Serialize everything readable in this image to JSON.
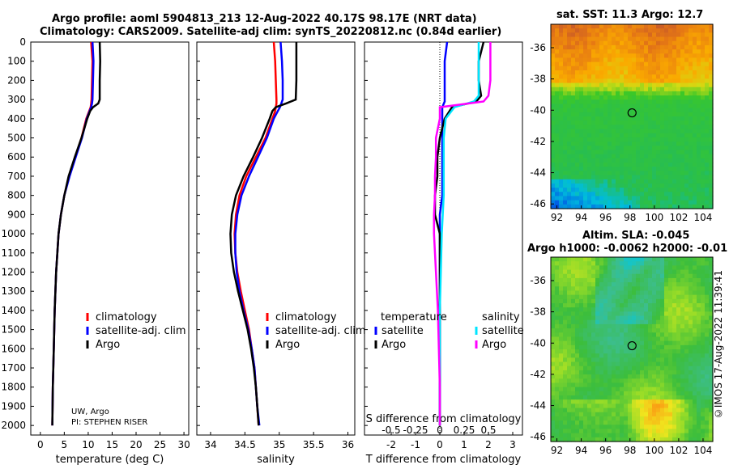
{
  "titles": {
    "line1": "Argo profile: aoml 5904813_213 12-Aug-2022 40.17S 98.17E (NRT data)",
    "line2": "Climatology: CARS2009. Satellite-adj clim: synTS_20220812.nc (0.84d earlier)"
  },
  "colors": {
    "climatology": "#ff0000",
    "satellite": "#0000ff",
    "argo": "#000000",
    "sat_temp": "#00e5ff",
    "sal_diff": "#ff00ff"
  },
  "chart_data": [
    {
      "type": "line",
      "name": "temperature",
      "xlabel": "temperature (deg C)",
      "ylabel": "",
      "xlim": [
        -2,
        31
      ],
      "ylim": [
        2050,
        0
      ],
      "xticks": [
        0,
        5,
        10,
        15,
        20,
        25,
        30
      ],
      "yticks": [
        0,
        100,
        200,
        300,
        400,
        500,
        600,
        700,
        800,
        900,
        1000,
        1100,
        1200,
        1300,
        1400,
        1500,
        1600,
        1700,
        1800,
        1900,
        2000
      ],
      "depth": [
        0,
        100,
        200,
        300,
        320,
        340,
        360,
        400,
        500,
        600,
        700,
        800,
        900,
        1000,
        1200,
        1400,
        1600,
        1800,
        2000
      ],
      "series": [
        {
          "name": "climatology",
          "values": [
            10.6,
            10.9,
            10.8,
            10.7,
            10.6,
            10.5,
            10.2,
            9.6,
            8.6,
            7.3,
            6.0,
            5.0,
            4.3,
            3.8,
            3.3,
            3.0,
            2.8,
            2.6,
            2.5
          ]
        },
        {
          "name": "satellite-adj. clim.",
          "values": [
            10.9,
            11.1,
            11.0,
            10.9,
            10.8,
            10.6,
            10.3,
            9.7,
            8.7,
            7.4,
            6.1,
            5.0,
            4.3,
            3.8,
            3.3,
            3.0,
            2.8,
            2.6,
            2.5
          ]
        },
        {
          "name": "Argo",
          "values": [
            12.4,
            12.5,
            12.4,
            12.4,
            12.1,
            11.0,
            10.4,
            9.8,
            8.6,
            7.2,
            5.9,
            5.0,
            4.3,
            3.8,
            3.3,
            3.0,
            2.8,
            2.6,
            2.5
          ]
        }
      ],
      "legend": [
        "climatology",
        "satellite-adj. clim",
        "Argo"
      ],
      "annotations": [
        "UW, Argo",
        "PI: STEPHEN RISER"
      ]
    },
    {
      "type": "line",
      "name": "salinity",
      "xlabel": "salinity",
      "xlim": [
        33.8,
        36.1
      ],
      "ylim": [
        2050,
        0
      ],
      "xticks": [
        34,
        34.5,
        35,
        35.5,
        36
      ],
      "xticklabels": [
        "34",
        "34.5",
        "35",
        "35.5",
        "36"
      ],
      "depth": [
        0,
        100,
        200,
        300,
        320,
        340,
        360,
        400,
        500,
        600,
        700,
        800,
        900,
        1000,
        1100,
        1200,
        1300,
        1400,
        1500,
        1600,
        1700,
        1800,
        1900,
        2000
      ],
      "series": [
        {
          "name": "climatology",
          "values": [
            34.92,
            34.94,
            34.95,
            34.96,
            34.96,
            34.95,
            34.94,
            34.9,
            34.8,
            34.66,
            34.52,
            34.42,
            34.37,
            34.35,
            34.36,
            34.39,
            34.44,
            34.5,
            34.56,
            34.6,
            34.64,
            34.66,
            34.68,
            34.7
          ]
        },
        {
          "name": "satellite-adj. clim.",
          "values": [
            35.02,
            35.04,
            35.05,
            35.05,
            35.03,
            35.01,
            34.98,
            34.92,
            34.82,
            34.69,
            34.56,
            34.45,
            34.39,
            34.36,
            34.36,
            34.38,
            34.42,
            34.48,
            34.55,
            34.6,
            34.64,
            34.66,
            34.68,
            34.71
          ]
        },
        {
          "name": "Argo",
          "values": [
            35.25,
            35.25,
            35.25,
            35.24,
            35.1,
            34.95,
            34.9,
            34.86,
            34.75,
            34.62,
            34.48,
            34.37,
            34.31,
            34.29,
            34.3,
            34.34,
            34.4,
            34.47,
            34.54,
            34.59,
            34.63,
            34.66,
            34.68,
            34.7
          ]
        }
      ],
      "legend": [
        "climatology",
        "satellite-adj. clim.",
        "Argo"
      ]
    },
    {
      "type": "line",
      "name": "difference",
      "xlabel": "T difference from climatology",
      "xlabel2": "S difference from climatology",
      "xlim": [
        -3.1,
        3.4
      ],
      "ylim": [
        2050,
        0
      ],
      "xticks": [
        -2,
        -1,
        0,
        1,
        2,
        3
      ],
      "xticks2": [
        -0.5,
        -0.25,
        0,
        0.25,
        0.5
      ],
      "xticklabels2": [
        "-0.5",
        "-0.25",
        "0",
        "0.25",
        "0.5"
      ],
      "depth": [
        0,
        100,
        200,
        280,
        310,
        340,
        400,
        500,
        600,
        700,
        800,
        900,
        1000,
        1200,
        1400,
        1600,
        1800,
        2000
      ],
      "series": [
        {
          "name": "temperature satellite",
          "values": [
            0.3,
            0.2,
            0.2,
            0.2,
            0.2,
            0.1,
            0.1,
            0.1,
            0.1,
            0.1,
            0.1,
            0.0,
            0.0,
            0.0,
            0.0,
            0.0,
            0.0,
            0.0
          ]
        },
        {
          "name": "temperature Argo",
          "values": [
            1.8,
            1.6,
            1.6,
            1.7,
            1.5,
            0.5,
            0.2,
            0.0,
            -0.1,
            -0.1,
            -0.2,
            -0.2,
            0.0,
            0.0,
            0.0,
            0.0,
            0.0,
            0.0
          ]
        },
        {
          "name": "salinity satellite",
          "values": [
            0.4,
            0.4,
            0.4,
            0.4,
            0.35,
            0.15,
            0.06,
            0.04,
            0.04,
            0.04,
            0.04,
            0.03,
            0.02,
            0.01,
            0.0,
            0.0,
            0.0,
            0.0
          ]
        },
        {
          "name": "salinity Argo",
          "values": [
            0.52,
            0.52,
            0.52,
            0.5,
            0.45,
            0.0,
            0.0,
            -0.04,
            -0.04,
            -0.05,
            -0.05,
            -0.06,
            -0.06,
            -0.04,
            -0.02,
            -0.01,
            0.0,
            0.0
          ]
        }
      ],
      "legend_left_title": "temperature",
      "legend_right_title": "salinity",
      "legend": [
        "satellite",
        "Argo",
        "satellite",
        "Argo"
      ]
    }
  ],
  "maps": {
    "sst": {
      "title": "sat. SST: 11.3 Argo: 12.7",
      "xticks": [
        "92",
        "94",
        "96",
        "98",
        "100",
        "102",
        "104"
      ],
      "yticks": [
        "-36",
        "-38",
        "-40",
        "-42",
        "-44",
        "-46"
      ],
      "float_lon": 98.17,
      "float_lat": -40.17
    },
    "sla": {
      "title1": "Altim. SLA: -0.045",
      "title2": "Argo h1000: -0.0062 h2000: -0.01",
      "xticks": [
        "92",
        "94",
        "96",
        "98",
        "100",
        "102",
        "104"
      ],
      "yticks": [
        "-36",
        "-38",
        "-40",
        "-42",
        "-44",
        "-46"
      ],
      "float_lon": 98.17,
      "float_lat": -40.17
    }
  },
  "credit": "©IMOS 17-Aug-2022 11:39:41"
}
